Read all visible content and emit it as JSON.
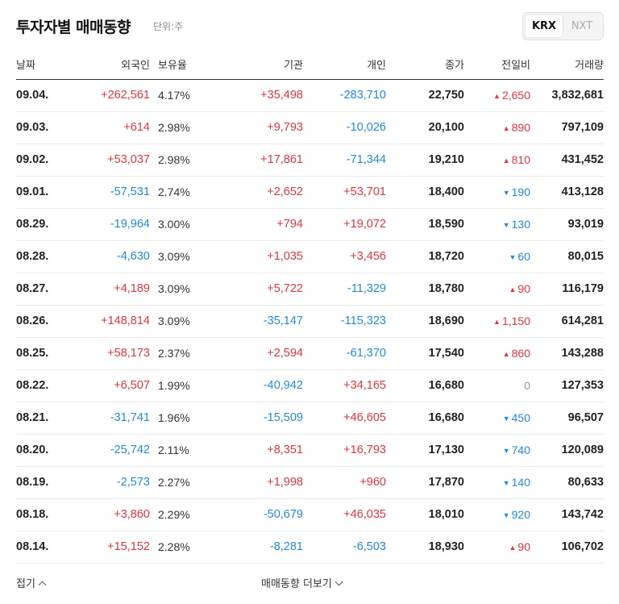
{
  "header": {
    "title": "투자자별 매매동향",
    "unit": "단위:주",
    "markets": [
      "KRX",
      "NXT"
    ],
    "selected_market": "KRX"
  },
  "columns": [
    "날짜",
    "외국인",
    "보유율",
    "기관",
    "개인",
    "종가",
    "전일비",
    "거래량"
  ],
  "rows": [
    {
      "date": "09.04.",
      "foreign": "+262,561",
      "holding": "4.17%",
      "institution": "+35,498",
      "individual": "-283,710",
      "close": "22,750",
      "change": "2,650",
      "dir": "up",
      "volume": "3,832,681"
    },
    {
      "date": "09.03.",
      "foreign": "+614",
      "holding": "2.98%",
      "institution": "+9,793",
      "individual": "-10,026",
      "close": "20,100",
      "change": "890",
      "dir": "up",
      "volume": "797,109"
    },
    {
      "date": "09.02.",
      "foreign": "+53,037",
      "holding": "2.98%",
      "institution": "+17,861",
      "individual": "-71,344",
      "close": "19,210",
      "change": "810",
      "dir": "up",
      "volume": "431,452"
    },
    {
      "date": "09.01.",
      "foreign": "-57,531",
      "holding": "2.74%",
      "institution": "+2,652",
      "individual": "+53,701",
      "close": "18,400",
      "change": "190",
      "dir": "down",
      "volume": "413,128"
    },
    {
      "date": "08.29.",
      "foreign": "-19,964",
      "holding": "3.00%",
      "institution": "+794",
      "individual": "+19,072",
      "close": "18,590",
      "change": "130",
      "dir": "down",
      "volume": "93,019"
    },
    {
      "date": "08.28.",
      "foreign": "-4,630",
      "holding": "3.09%",
      "institution": "+1,035",
      "individual": "+3,456",
      "close": "18,720",
      "change": "60",
      "dir": "down",
      "volume": "80,015"
    },
    {
      "date": "08.27.",
      "foreign": "+4,189",
      "holding": "3.09%",
      "institution": "+5,722",
      "individual": "-11,329",
      "close": "18,780",
      "change": "90",
      "dir": "up",
      "volume": "116,179"
    },
    {
      "date": "08.26.",
      "foreign": "+148,814",
      "holding": "3.09%",
      "institution": "-35,147",
      "individual": "-115,323",
      "close": "18,690",
      "change": "1,150",
      "dir": "up",
      "volume": "614,281"
    },
    {
      "date": "08.25.",
      "foreign": "+58,173",
      "holding": "2.37%",
      "institution": "+2,594",
      "individual": "-61,370",
      "close": "17,540",
      "change": "860",
      "dir": "up",
      "volume": "143,288"
    },
    {
      "date": "08.22.",
      "foreign": "+6,507",
      "holding": "1.99%",
      "institution": "-40,942",
      "individual": "+34,165",
      "close": "16,680",
      "change": "0",
      "dir": "flat",
      "volume": "127,353"
    },
    {
      "date": "08.21.",
      "foreign": "-31,741",
      "holding": "1.96%",
      "institution": "-15,509",
      "individual": "+46,605",
      "close": "16,680",
      "change": "450",
      "dir": "down",
      "volume": "96,507"
    },
    {
      "date": "08.20.",
      "foreign": "-25,742",
      "holding": "2.11%",
      "institution": "+8,351",
      "individual": "+16,793",
      "close": "17,130",
      "change": "740",
      "dir": "down",
      "volume": "120,089"
    },
    {
      "date": "08.19.",
      "foreign": "-2,573",
      "holding": "2.27%",
      "institution": "+1,998",
      "individual": "+960",
      "close": "17,870",
      "change": "140",
      "dir": "down",
      "volume": "80,633"
    },
    {
      "date": "08.18.",
      "foreign": "+3,860",
      "holding": "2.29%",
      "institution": "-50,679",
      "individual": "+46,035",
      "close": "18,010",
      "change": "920",
      "dir": "down",
      "volume": "143,742"
    },
    {
      "date": "08.14.",
      "foreign": "+15,152",
      "holding": "2.28%",
      "institution": "-8,281",
      "individual": "-6,503",
      "close": "18,930",
      "change": "90",
      "dir": "up",
      "volume": "106,702"
    }
  ],
  "footer": {
    "collapse_label": "접기",
    "more_label": "매매동향 더보기"
  },
  "colors": {
    "up": "#e8343c",
    "down": "#1f8ae0",
    "flat": "#999999"
  },
  "icons": {
    "up": "triangle-up-icon",
    "down": "triangle-down-icon",
    "collapse": "chevron-up-icon",
    "more": "chevron-down-icon"
  }
}
